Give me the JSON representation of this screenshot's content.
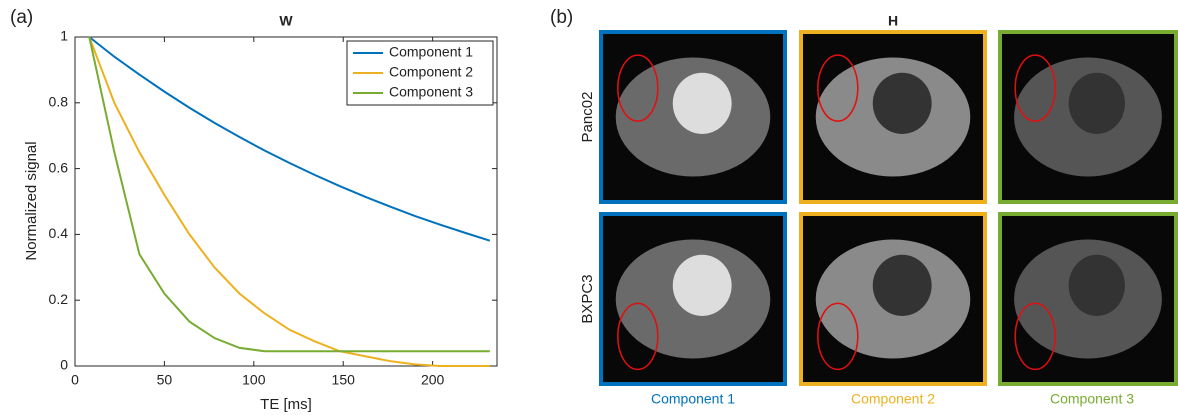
{
  "chart_data": {
    "type": "line",
    "panel_label": "(a)",
    "title": "W",
    "x_label": "TE [ms]",
    "y_label": "Normalized signal",
    "x": [
      8,
      22,
      36,
      50,
      64,
      78,
      92,
      106,
      120,
      134,
      148,
      162,
      176,
      190,
      204,
      218,
      232
    ],
    "series": [
      {
        "name": "Component 1",
        "color": "#0072bd",
        "values": [
          1,
          0.94,
          0.886,
          0.834,
          0.785,
          0.739,
          0.696,
          0.655,
          0.617,
          0.581,
          0.547,
          0.515,
          0.485,
          0.456,
          0.43,
          0.405,
          0.381
        ]
      },
      {
        "name": "Component 2",
        "color": "#edb120",
        "values": [
          1,
          0.8,
          0.65,
          0.52,
          0.4,
          0.3,
          0.22,
          0.16,
          0.11,
          0.075,
          0.045,
          0.03,
          0.015,
          0.005,
          0,
          0,
          0
        ]
      },
      {
        "name": "Component 3",
        "color": "#77ac30",
        "values": [
          1,
          0.65,
          0.34,
          0.22,
          0.135,
          0.085,
          0.055,
          0.045,
          0.045,
          0.045,
          0.045,
          0.045,
          0.045,
          0.045,
          0.045,
          0.045,
          0.045
        ]
      }
    ],
    "xlim": [
      0,
      236
    ],
    "ylim": [
      0,
      1
    ],
    "xticks": [
      0,
      50,
      100,
      150,
      200
    ],
    "yticks": [
      0,
      0.2,
      0.4,
      0.6,
      0.8,
      1
    ],
    "legend": "top-right"
  },
  "panel_b": {
    "label": "(b)",
    "title": "H",
    "rows": [
      "Panc02",
      "BXPC3"
    ],
    "columns": [
      {
        "name": "Component 1",
        "color": "#0072bd"
      },
      {
        "name": "Component 2",
        "color": "#edb120"
      },
      {
        "name": "Component 3",
        "color": "#77ac30"
      }
    ]
  }
}
